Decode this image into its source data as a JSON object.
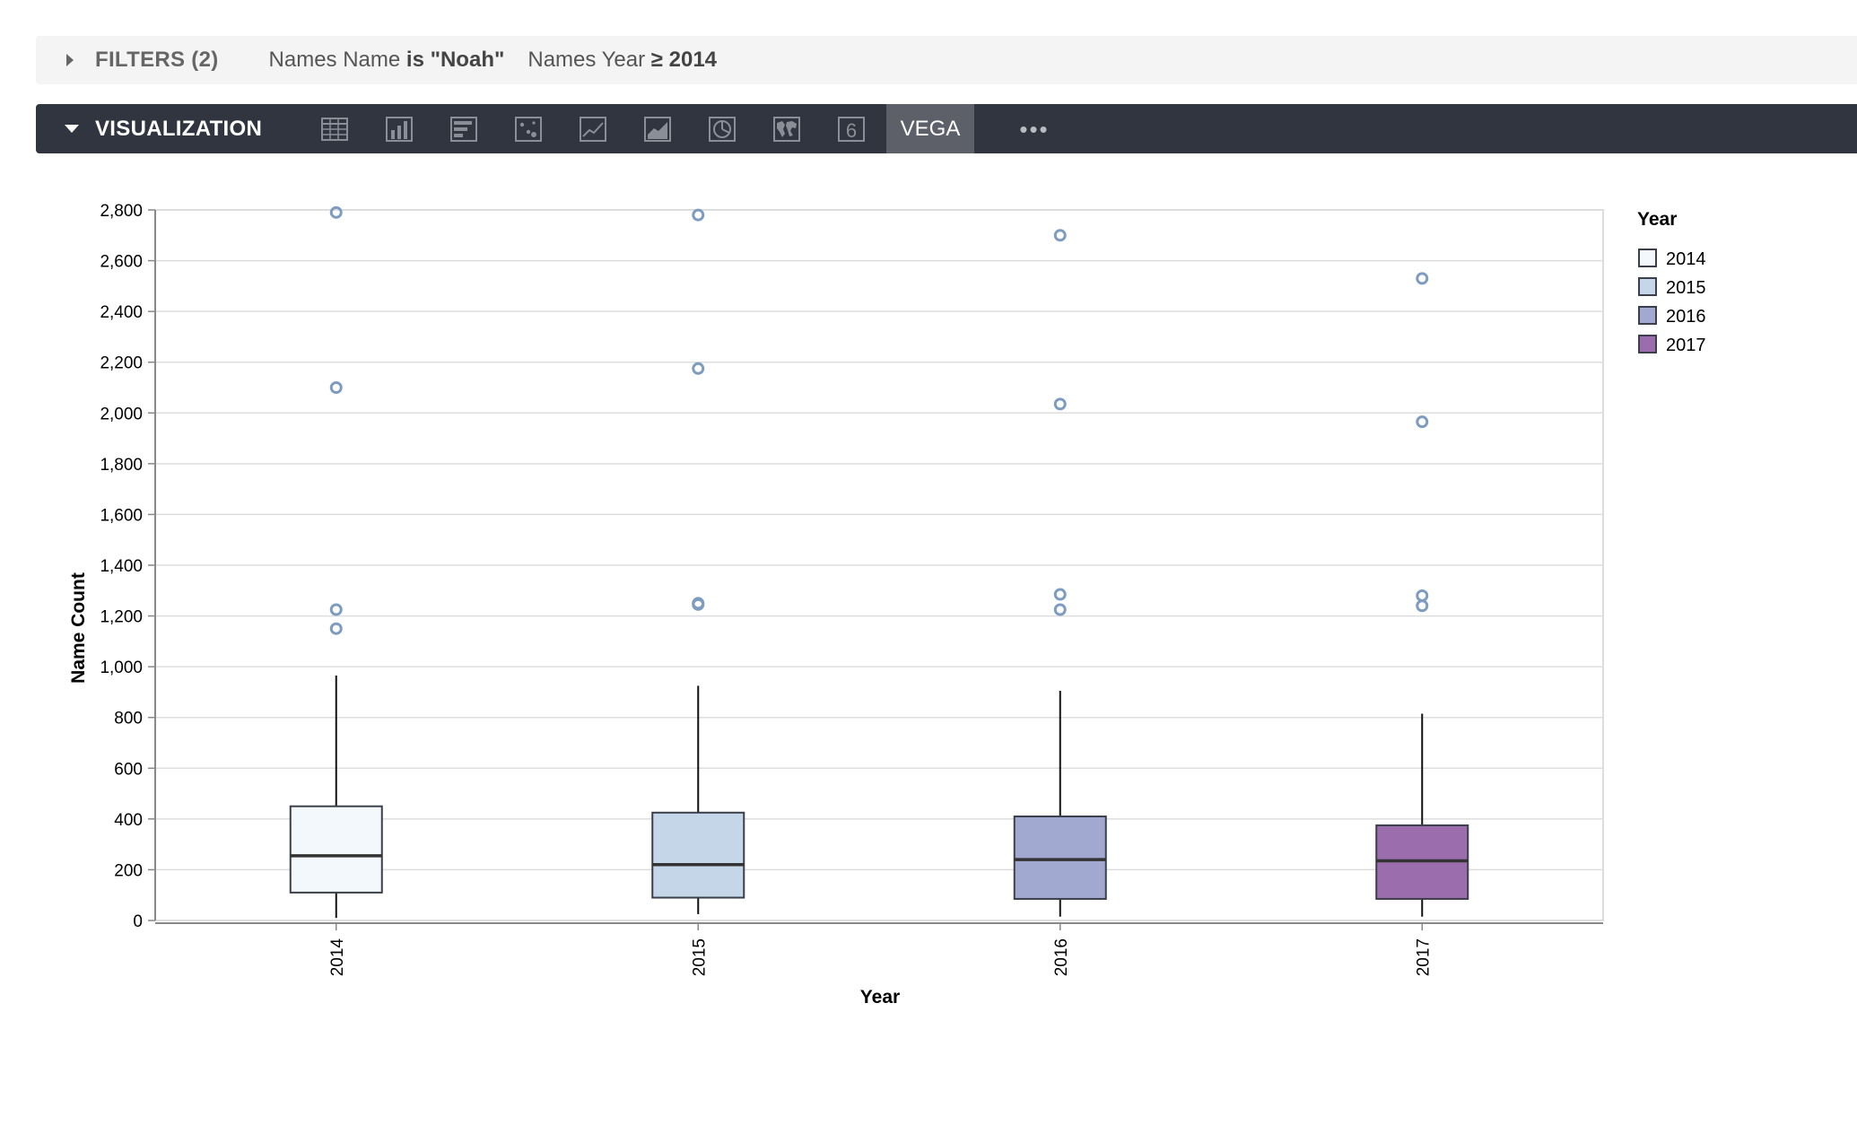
{
  "filters": {
    "title": "FILTERS (2)",
    "chips": [
      {
        "field": "Names Name",
        "op": "is",
        "value": "\"Noah\""
      },
      {
        "field": "Names Year",
        "op": "≥",
        "value": "2014"
      }
    ]
  },
  "visualization": {
    "title": "VISUALIZATION",
    "icons": [
      "table-icon",
      "column-chart-icon",
      "bar-chart-icon",
      "scatter-icon",
      "line-chart-icon",
      "area-chart-icon",
      "pie-chart-icon",
      "map-icon",
      "single-value-icon"
    ],
    "single_value_glyph": "6",
    "active_tab": "VEGA",
    "more": "•••"
  },
  "colors": {
    "grid": "#dddddd",
    "outlier": "#7d9cc0",
    "box_stroke": "#3a3f4a",
    "median": "#333333"
  },
  "chart_data": {
    "type": "boxplot",
    "xlabel": "Year",
    "ylabel": "Name Count",
    "ylim": [
      0,
      2800
    ],
    "yticks": [
      0,
      200,
      400,
      600,
      800,
      1000,
      1200,
      1400,
      1600,
      1800,
      2000,
      2200,
      2400,
      2600,
      2800
    ],
    "grid": true,
    "legend": {
      "title": "Year",
      "placement": "right"
    },
    "categories": [
      "2014",
      "2015",
      "2016",
      "2017"
    ],
    "series": [
      {
        "name": "2014",
        "color": "#f2f8fb",
        "whisker_low": 10,
        "q1": 110,
        "median": 255,
        "q3": 450,
        "whisker_high": 965,
        "outliers": [
          1150,
          1225,
          2100,
          2790
        ]
      },
      {
        "name": "2015",
        "color": "#c5d6e8",
        "whisker_low": 25,
        "q1": 90,
        "median": 220,
        "q3": 425,
        "whisker_high": 925,
        "outliers": [
          1245,
          1250,
          2175,
          2780
        ]
      },
      {
        "name": "2016",
        "color": "#a1a9d1",
        "whisker_low": 15,
        "q1": 85,
        "median": 240,
        "q3": 410,
        "whisker_high": 905,
        "outliers": [
          1225,
          1285,
          2035,
          2700
        ]
      },
      {
        "name": "2017",
        "color": "#9b6dad",
        "whisker_low": 15,
        "q1": 85,
        "median": 235,
        "q3": 375,
        "whisker_high": 815,
        "outliers": [
          1240,
          1280,
          1965,
          2530
        ]
      }
    ]
  }
}
